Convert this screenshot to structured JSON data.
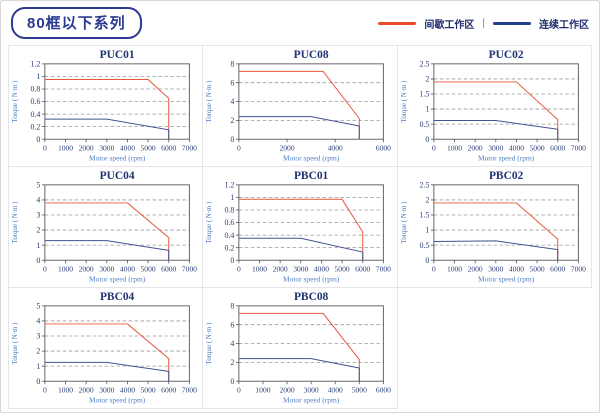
{
  "header": {
    "series_badge": "80框以下系列"
  },
  "legend": {
    "intermittent_label": "间歇工作区",
    "separator": "|",
    "continuous_label": "连续工作区",
    "intermittent_color": "#e8482c",
    "continuous_color": "#23408f"
  },
  "colors": {
    "title": "#1f3272",
    "tick_label": "#2c3e78",
    "axis_label": "#4d7fc4",
    "grid_line": "#9a9a9a",
    "plot_border": "#555555"
  },
  "chart_data": [
    {
      "type": "line",
      "title": "PUC01",
      "xlabel": "Motor speed (rpm)",
      "ylabel": "Torque ( N·m )",
      "xlim": [
        0,
        7000
      ],
      "ylim": [
        0,
        1.2
      ],
      "xticks": [
        0,
        1000,
        2000,
        3000,
        4000,
        5000,
        6000,
        7000
      ],
      "yticks": [
        0,
        0.2,
        0.4,
        0.6,
        0.8,
        1,
        1.2
      ],
      "grid": "horizontal-dashed",
      "legend_position": "page-top-right",
      "series": [
        {
          "name": "间歇工作区",
          "color": "#e8573f",
          "points": [
            [
              0,
              0.95
            ],
            [
              5000,
              0.95
            ],
            [
              6000,
              0.65
            ],
            [
              6000,
              0
            ]
          ]
        },
        {
          "name": "连续工作区",
          "color": "#41528e",
          "points": [
            [
              0,
              0.32
            ],
            [
              3000,
              0.32
            ],
            [
              6000,
              0.15
            ],
            [
              6000,
              0
            ]
          ]
        }
      ]
    },
    {
      "type": "line",
      "title": "PUC08",
      "xlabel": "Motor speed (rpm)",
      "ylabel": "Torque ( N·m )",
      "xlim": [
        0,
        6000
      ],
      "ylim": [
        0,
        8
      ],
      "xticks": [
        0,
        2000,
        4000,
        6000
      ],
      "yticks": [
        0,
        2,
        4,
        6,
        8
      ],
      "grid": "horizontal-dashed",
      "legend_position": "page-top-right",
      "series": [
        {
          "name": "间歇工作区",
          "color": "#e8573f",
          "points": [
            [
              0,
              7.2
            ],
            [
              3500,
              7.2
            ],
            [
              5000,
              2.2
            ],
            [
              5000,
              0
            ]
          ]
        },
        {
          "name": "连续工作区",
          "color": "#41528e",
          "points": [
            [
              0,
              2.4
            ],
            [
              3000,
              2.4
            ],
            [
              5000,
              1.4
            ],
            [
              5000,
              0
            ]
          ]
        }
      ]
    },
    {
      "type": "line",
      "title": "PUC02",
      "xlabel": "Motor speed (rpm)",
      "ylabel": "Torque ( N·m )",
      "xlim": [
        0,
        7000
      ],
      "ylim": [
        0,
        2.5
      ],
      "xticks": [
        0,
        1000,
        2000,
        3000,
        4000,
        5000,
        6000,
        7000
      ],
      "yticks": [
        0,
        0.5,
        1,
        1.5,
        2,
        2.5
      ],
      "grid": "horizontal-dashed",
      "legend_position": "page-top-right",
      "series": [
        {
          "name": "间歇工作区",
          "color": "#e8573f",
          "points": [
            [
              0,
              1.9
            ],
            [
              4000,
              1.9
            ],
            [
              6000,
              0.65
            ],
            [
              6000,
              0
            ]
          ]
        },
        {
          "name": "连续工作区",
          "color": "#41528e",
          "points": [
            [
              0,
              0.62
            ],
            [
              3000,
              0.62
            ],
            [
              6000,
              0.33
            ],
            [
              6000,
              0
            ]
          ]
        }
      ]
    },
    {
      "type": "line",
      "title": "PUC04",
      "xlabel": "Motor speed (rpm)",
      "ylabel": "Torque ( N·m )",
      "xlim": [
        0,
        7000
      ],
      "ylim": [
        0,
        5
      ],
      "xticks": [
        0,
        1000,
        2000,
        3000,
        4000,
        5000,
        6000,
        7000
      ],
      "yticks": [
        0,
        1,
        2,
        3,
        4,
        5
      ],
      "grid": "horizontal-dashed",
      "legend_position": "page-top-right",
      "series": [
        {
          "name": "间歇工作区",
          "color": "#e8573f",
          "points": [
            [
              0,
              3.8
            ],
            [
              4000,
              3.8
            ],
            [
              6000,
              1.5
            ],
            [
              6000,
              0
            ]
          ]
        },
        {
          "name": "连续工作区",
          "color": "#41528e",
          "points": [
            [
              0,
              1.3
            ],
            [
              3000,
              1.3
            ],
            [
              6000,
              0.65
            ],
            [
              6000,
              0
            ]
          ]
        }
      ]
    },
    {
      "type": "line",
      "title": "PBC01",
      "xlabel": "Motor speed (rpm)",
      "ylabel": "Torque ( N·m )",
      "xlim": [
        0,
        7000
      ],
      "ylim": [
        0,
        1.2
      ],
      "xticks": [
        0,
        1000,
        2000,
        3000,
        4000,
        5000,
        6000,
        7000
      ],
      "yticks": [
        0,
        0.2,
        0.4,
        0.6,
        0.8,
        1,
        1.2
      ],
      "grid": "horizontal-dashed",
      "legend_position": "page-top-right",
      "series": [
        {
          "name": "间歇工作区",
          "color": "#e8573f",
          "points": [
            [
              0,
              0.97
            ],
            [
              5000,
              0.97
            ],
            [
              6000,
              0.45
            ],
            [
              6000,
              0
            ]
          ]
        },
        {
          "name": "连续工作区",
          "color": "#41528e",
          "points": [
            [
              0,
              0.35
            ],
            [
              3000,
              0.35
            ],
            [
              6000,
              0.13
            ],
            [
              6000,
              0
            ]
          ]
        }
      ]
    },
    {
      "type": "line",
      "title": "PBC02",
      "xlabel": "Motor speed (rpm)",
      "ylabel": "Torque ( N·m )",
      "xlim": [
        0,
        7000
      ],
      "ylim": [
        0,
        2.5
      ],
      "xticks": [
        0,
        1000,
        2000,
        3000,
        4000,
        5000,
        6000,
        7000
      ],
      "yticks": [
        0,
        0.5,
        1,
        1.5,
        2,
        2.5
      ],
      "grid": "horizontal-dashed",
      "legend_position": "page-top-right",
      "series": [
        {
          "name": "间歇工作区",
          "color": "#e8573f",
          "points": [
            [
              0,
              1.9
            ],
            [
              4000,
              1.9
            ],
            [
              6000,
              0.7
            ],
            [
              6000,
              0
            ]
          ]
        },
        {
          "name": "连续工作区",
          "color": "#41528e",
          "points": [
            [
              0,
              0.62
            ],
            [
              3000,
              0.64
            ],
            [
              6000,
              0.35
            ],
            [
              6000,
              0
            ]
          ]
        }
      ]
    },
    {
      "type": "line",
      "title": "PBC04",
      "xlabel": "Motor speed (rpm)",
      "ylabel": "Torque ( N·m )",
      "xlim": [
        0,
        7000
      ],
      "ylim": [
        0,
        5
      ],
      "xticks": [
        0,
        1000,
        2000,
        3000,
        4000,
        5000,
        6000,
        7000
      ],
      "yticks": [
        0,
        1,
        2,
        3,
        4,
        5
      ],
      "grid": "horizontal-dashed",
      "legend_position": "page-top-right",
      "series": [
        {
          "name": "间歇工作区",
          "color": "#e8573f",
          "points": [
            [
              0,
              3.8
            ],
            [
              4000,
              3.8
            ],
            [
              6000,
              1.5
            ],
            [
              6000,
              0
            ]
          ]
        },
        {
          "name": "连续工作区",
          "color": "#41528e",
          "points": [
            [
              0,
              1.25
            ],
            [
              3000,
              1.25
            ],
            [
              6000,
              0.65
            ],
            [
              6000,
              0
            ]
          ]
        }
      ]
    },
    {
      "type": "line",
      "title": "PBC08",
      "xlabel": "Motor speed (rpm)",
      "ylabel": "Torque ( N·m )",
      "xlim": [
        0,
        6000
      ],
      "ylim": [
        0,
        8
      ],
      "xticks": [
        0,
        1000,
        2000,
        3000,
        4000,
        5000,
        6000
      ],
      "yticks": [
        0,
        2,
        4,
        6,
        8
      ],
      "grid": "horizontal-dashed",
      "legend_position": "page-top-right",
      "series": [
        {
          "name": "间歇工作区",
          "color": "#e8573f",
          "points": [
            [
              0,
              7.2
            ],
            [
              3500,
              7.2
            ],
            [
              5000,
              2.3
            ],
            [
              5000,
              0
            ]
          ]
        },
        {
          "name": "连续工作区",
          "color": "#41528e",
          "points": [
            [
              0,
              2.4
            ],
            [
              3000,
              2.4
            ],
            [
              5000,
              1.4
            ],
            [
              5000,
              0
            ]
          ]
        }
      ]
    }
  ]
}
